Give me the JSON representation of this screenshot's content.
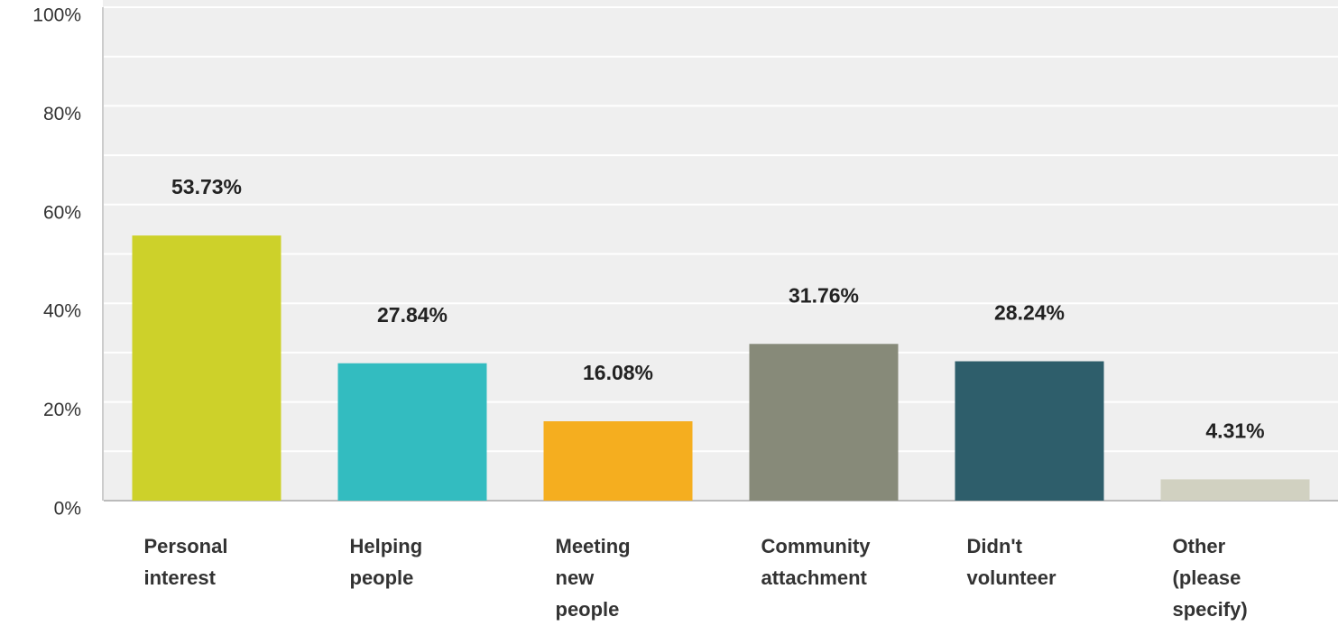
{
  "chart_data": {
    "type": "bar",
    "categories": [
      "Personal interest",
      "Helping people",
      "Meeting new people",
      "Community attachment",
      "Didn't volunteer",
      "Other (please specify)"
    ],
    "values": [
      53.73,
      27.84,
      16.08,
      31.76,
      28.24,
      4.31
    ],
    "value_labels": [
      "53.73%",
      "27.84%",
      "16.08%",
      "31.76%",
      "28.24%",
      "4.31%"
    ],
    "colors": [
      "#cdd12a",
      "#33bcc0",
      "#f5ae1f",
      "#878a79",
      "#2e5e6b",
      "#d1d1c1"
    ],
    "ylim": [
      0,
      100
    ],
    "yticks": [
      {
        "value": 0,
        "label": "0%"
      },
      {
        "value": 20,
        "label": "20%"
      },
      {
        "value": 40,
        "label": "40%"
      },
      {
        "value": 60,
        "label": "60%"
      },
      {
        "value": 80,
        "label": "80%"
      },
      {
        "value": 100,
        "label": "100%"
      }
    ],
    "minor_yticks": [
      10,
      30,
      50,
      70,
      90
    ],
    "grid": true
  }
}
